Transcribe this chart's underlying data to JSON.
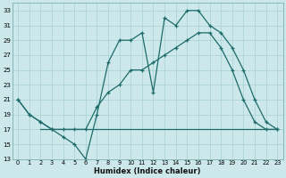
{
  "xlabel": "Humidex (Indice chaleur)",
  "bg_color": "#cce8ea",
  "grid_color": "#a8d0d3",
  "line_color": "#1e6b6b",
  "xlim": [
    -0.5,
    23.5
  ],
  "ylim": [
    13,
    34
  ],
  "xticks": [
    0,
    1,
    2,
    3,
    4,
    5,
    6,
    7,
    8,
    9,
    10,
    11,
    12,
    13,
    14,
    15,
    16,
    17,
    18,
    19,
    20,
    21,
    22,
    23
  ],
  "yticks": [
    13,
    15,
    17,
    19,
    21,
    23,
    25,
    27,
    29,
    31,
    33
  ],
  "line1_x": [
    0,
    1,
    2,
    3,
    4,
    5,
    6,
    7,
    8,
    9,
    10,
    11,
    12,
    13,
    14,
    15,
    16,
    17,
    18,
    19,
    20,
    21,
    22,
    23
  ],
  "line1_y": [
    21,
    19,
    18,
    17,
    16,
    15,
    13,
    19,
    26,
    29,
    29,
    30,
    22,
    32,
    31,
    33,
    33,
    31,
    30,
    28,
    25,
    21,
    18,
    17
  ],
  "line2_x": [
    2,
    3,
    9,
    18,
    22,
    23
  ],
  "line2_y": [
    17,
    17,
    17,
    17,
    17,
    17
  ],
  "line3_x": [
    0,
    1,
    2,
    3,
    4,
    5,
    6,
    7,
    8,
    9,
    10,
    11,
    12,
    13,
    14,
    15,
    16,
    17,
    18,
    19,
    20,
    21,
    22,
    23
  ],
  "line3_y": [
    21,
    19,
    18,
    17,
    17,
    17,
    17,
    20,
    22,
    23,
    25,
    25,
    26,
    27,
    28,
    29,
    30,
    30,
    28,
    25,
    21,
    18,
    17,
    17
  ]
}
